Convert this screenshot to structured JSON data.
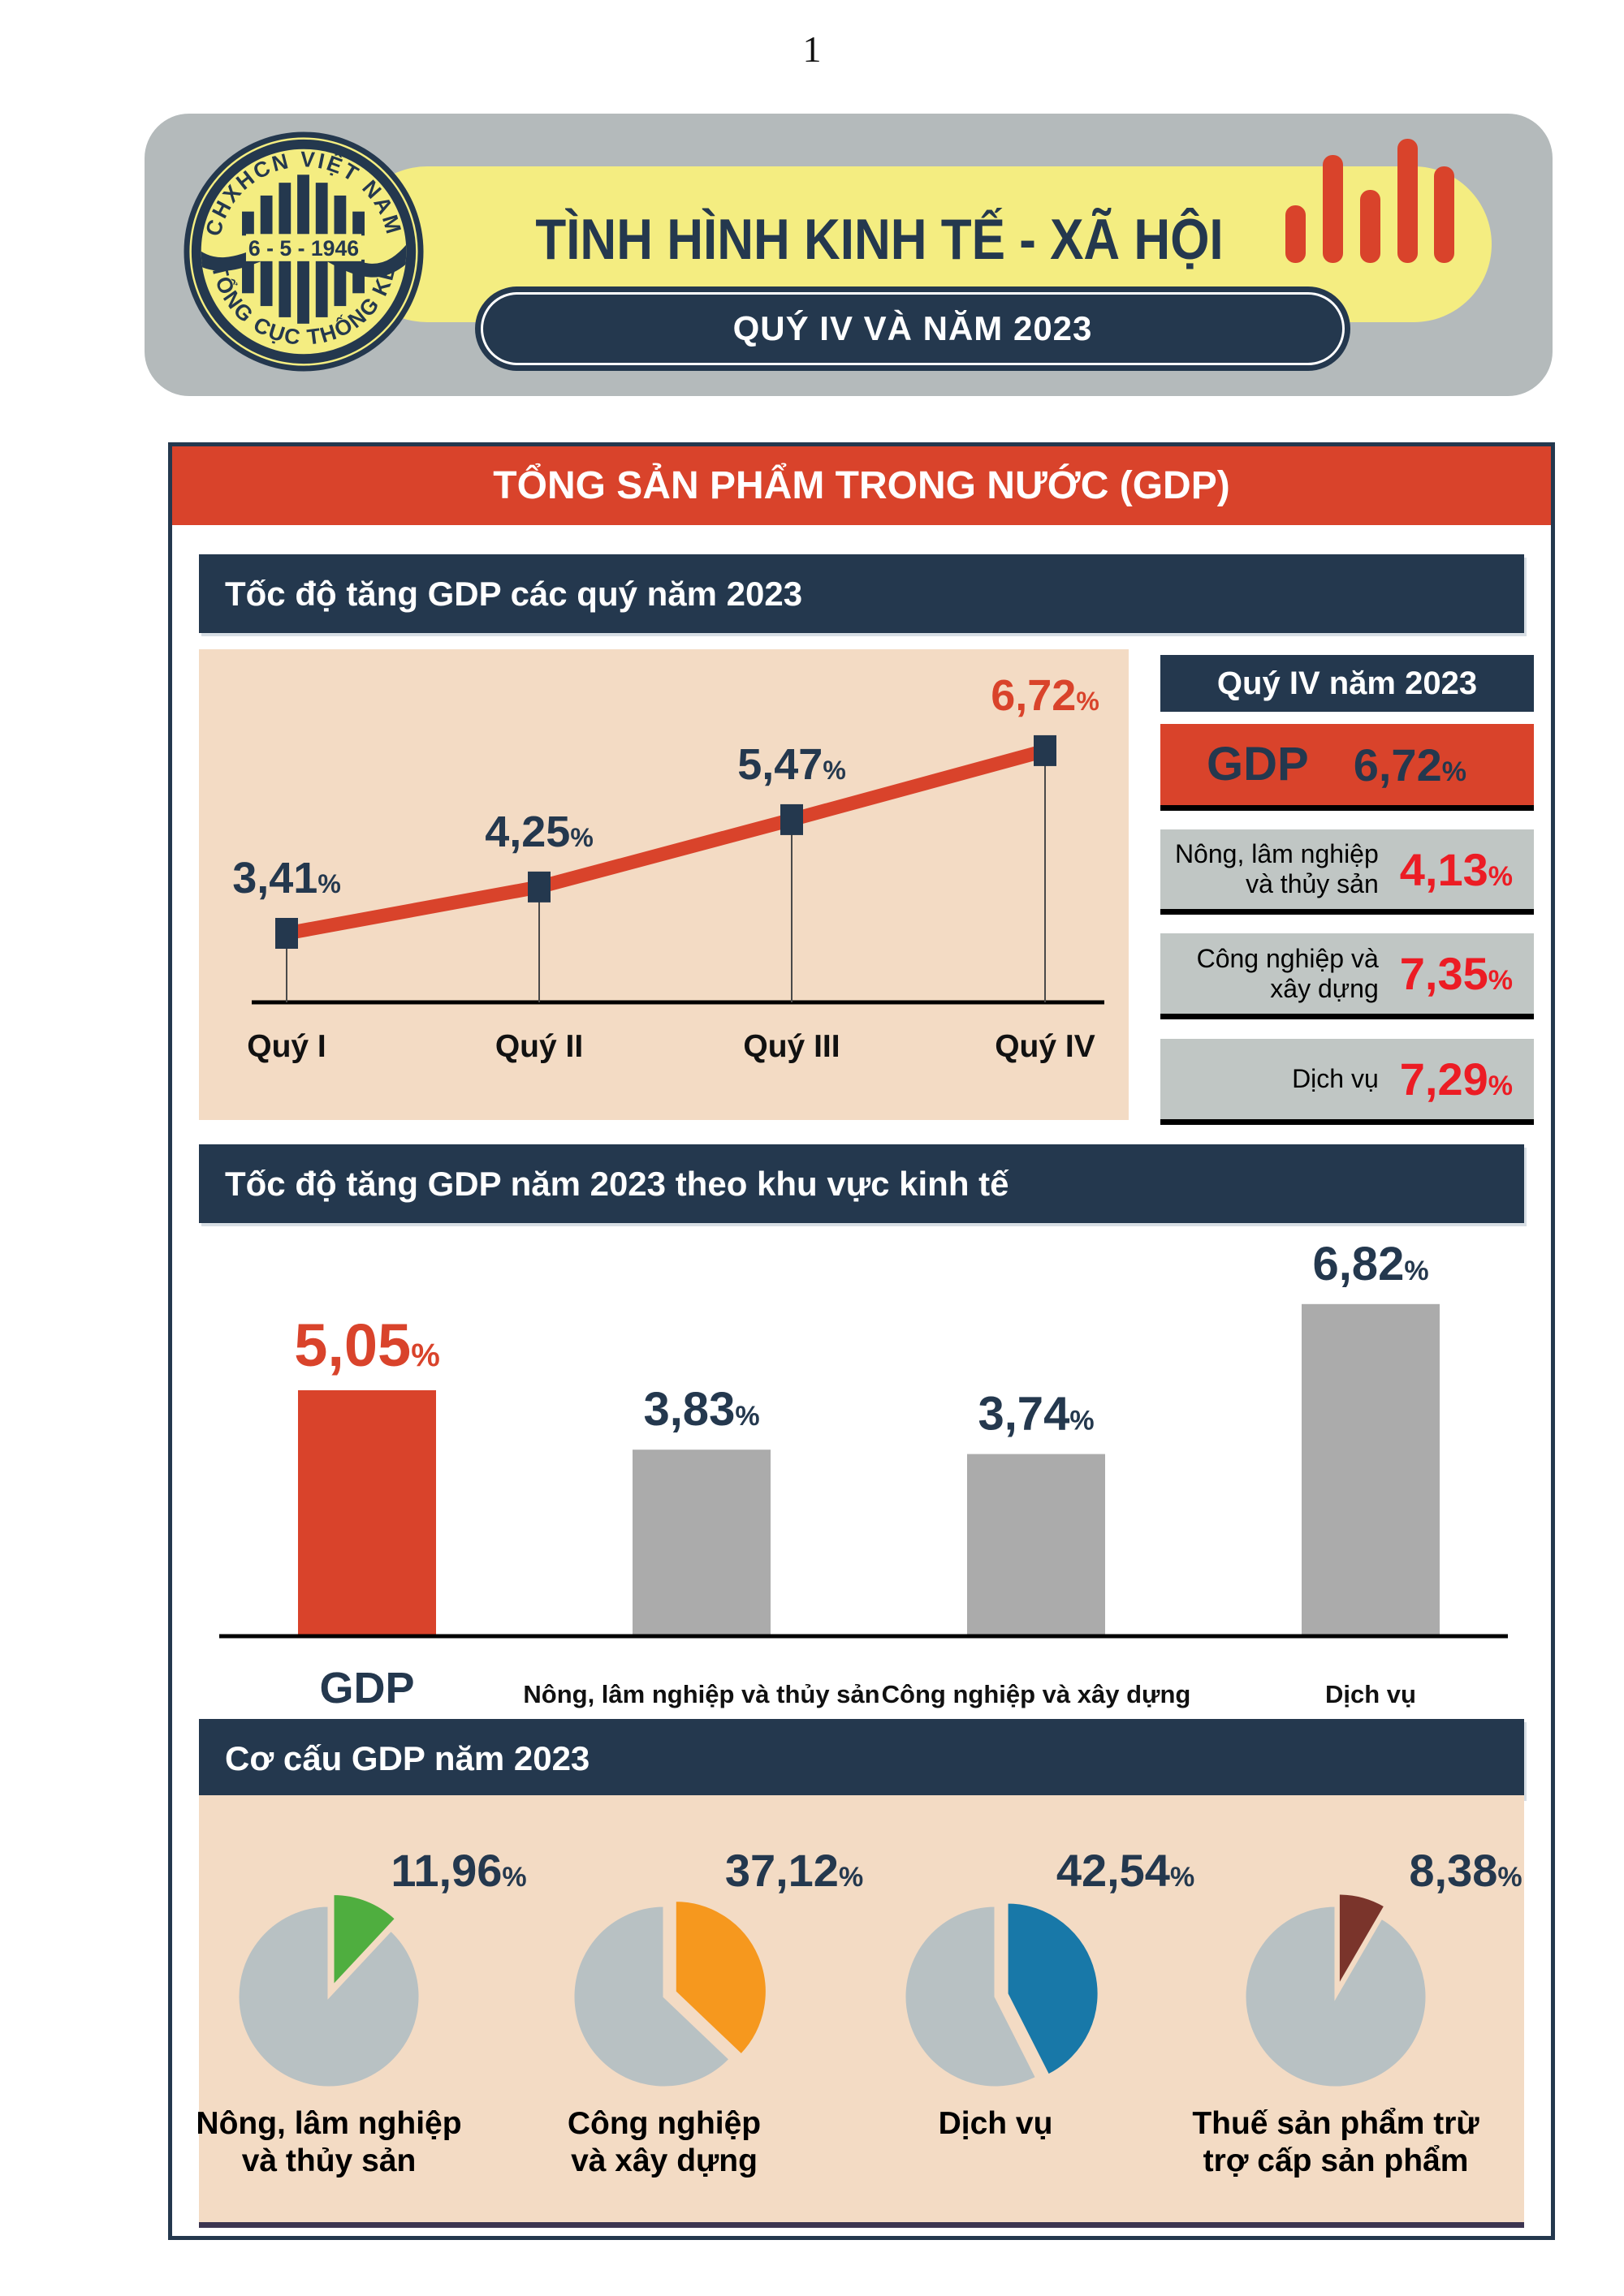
{
  "page": {
    "number": "1"
  },
  "colors": {
    "navy": "#24384e",
    "red": "#d9432b",
    "bright_red": "#ec1c24",
    "yellow": "#f4ed81",
    "header_gray": "#b4babb",
    "peach": "#f3dbc4",
    "stat_box_gray": "#c0c6c4",
    "bar_gray": "#ababab",
    "pie_gray": "#b8c1c3",
    "green": "#4fae3f",
    "orange": "#f6981e",
    "blue": "#1878a8",
    "maroon": "#7a342b",
    "footer_line": "#3b3450"
  },
  "header": {
    "logo": {
      "top_text": "CHXHCN VIỆT NAM",
      "bottom_text": "TỔNG CỤC THỐNG KÊ",
      "center_text": "6 - 5 - 1946"
    },
    "title": "TÌNH HÌNH KINH TẾ - XÃ HỘI",
    "subtitle": "QUÝ IV VÀ NĂM 2023"
  },
  "main": {
    "banner": "TỔNG SẢN PHẨM TRONG NƯỚC (GDP)"
  },
  "sections": [
    {
      "title": "Tốc độ tăng GDP các quý năm 2023"
    },
    {
      "title": "Tốc độ tăng GDP năm 2023 theo khu vực kinh tế"
    },
    {
      "title": "Cơ cấu GDP năm 2023"
    }
  ],
  "quarter_panel": {
    "title": "Quý IV năm 2023",
    "rows": [
      {
        "label": "GDP",
        "value": "6,72",
        "unit": "%"
      },
      {
        "label": "Nông, lâm nghiệp\nvà thủy sản",
        "value": "4,13",
        "unit": "%"
      },
      {
        "label": "Công nghiệp và\nxây dựng",
        "value": "7,35",
        "unit": "%"
      },
      {
        "label": "Dịch vụ",
        "value": "7,29",
        "unit": "%"
      }
    ]
  },
  "chart_data": [
    {
      "type": "line",
      "title": "Tốc độ tăng GDP các quý năm 2023",
      "categories": [
        "Quý I",
        "Quý II",
        "Quý III",
        "Quý IV"
      ],
      "values": [
        3.41,
        4.25,
        5.47,
        6.72
      ],
      "value_labels": [
        "3,41",
        "4,25",
        "5,47",
        "6,72"
      ],
      "unit": "%",
      "ylabel": "",
      "xlabel": "",
      "grid": false,
      "legend": "none",
      "line_color": "#d9432b",
      "marker_color": "#24384e",
      "label_color": "#24384e",
      "highlight_last_label_color": "#d9432b"
    },
    {
      "type": "bar",
      "title": "Tốc độ tăng GDP năm 2023 theo khu vực kinh tế",
      "categories": [
        "GDP",
        "Nông, lâm nghiệp và thủy sản",
        "Công nghiệp và xây dựng",
        "Dịch vụ"
      ],
      "values": [
        5.05,
        3.83,
        3.74,
        6.82
      ],
      "value_labels": [
        "5,05",
        "3,83",
        "3,74",
        "6,82"
      ],
      "unit": "%",
      "ylim": [
        0,
        7.5
      ],
      "grid": false,
      "legend": "none",
      "bar_colors": [
        "#d9432b",
        "#ababab",
        "#ababab",
        "#ababab"
      ],
      "value_label_colors": [
        "#d9432b",
        "#24384e",
        "#24384e",
        "#24384e"
      ]
    },
    {
      "type": "pie",
      "title": "Cơ cấu GDP năm 2023",
      "slices": [
        {
          "label": "Nông, lâm nghiệp\nvà thủy sản",
          "value": 11.96,
          "display": "11,96",
          "color": "#4fae3f"
        },
        {
          "label": "Công nghiệp\nvà xây dựng",
          "value": 37.12,
          "display": "37,12",
          "color": "#f6981e"
        },
        {
          "label": "Dịch vụ",
          "value": 42.54,
          "display": "42,54",
          "color": "#1878a8"
        },
        {
          "label": "Thuế sản phẩm trừ\ntrợ cấp sản phẩm",
          "value": 8.38,
          "display": "8,38",
          "color": "#7a342b"
        }
      ],
      "unit": "%",
      "rest_color": "#b8c1c3",
      "start_angle_deg": 0,
      "direction": "clockwise",
      "exploded": true
    }
  ]
}
